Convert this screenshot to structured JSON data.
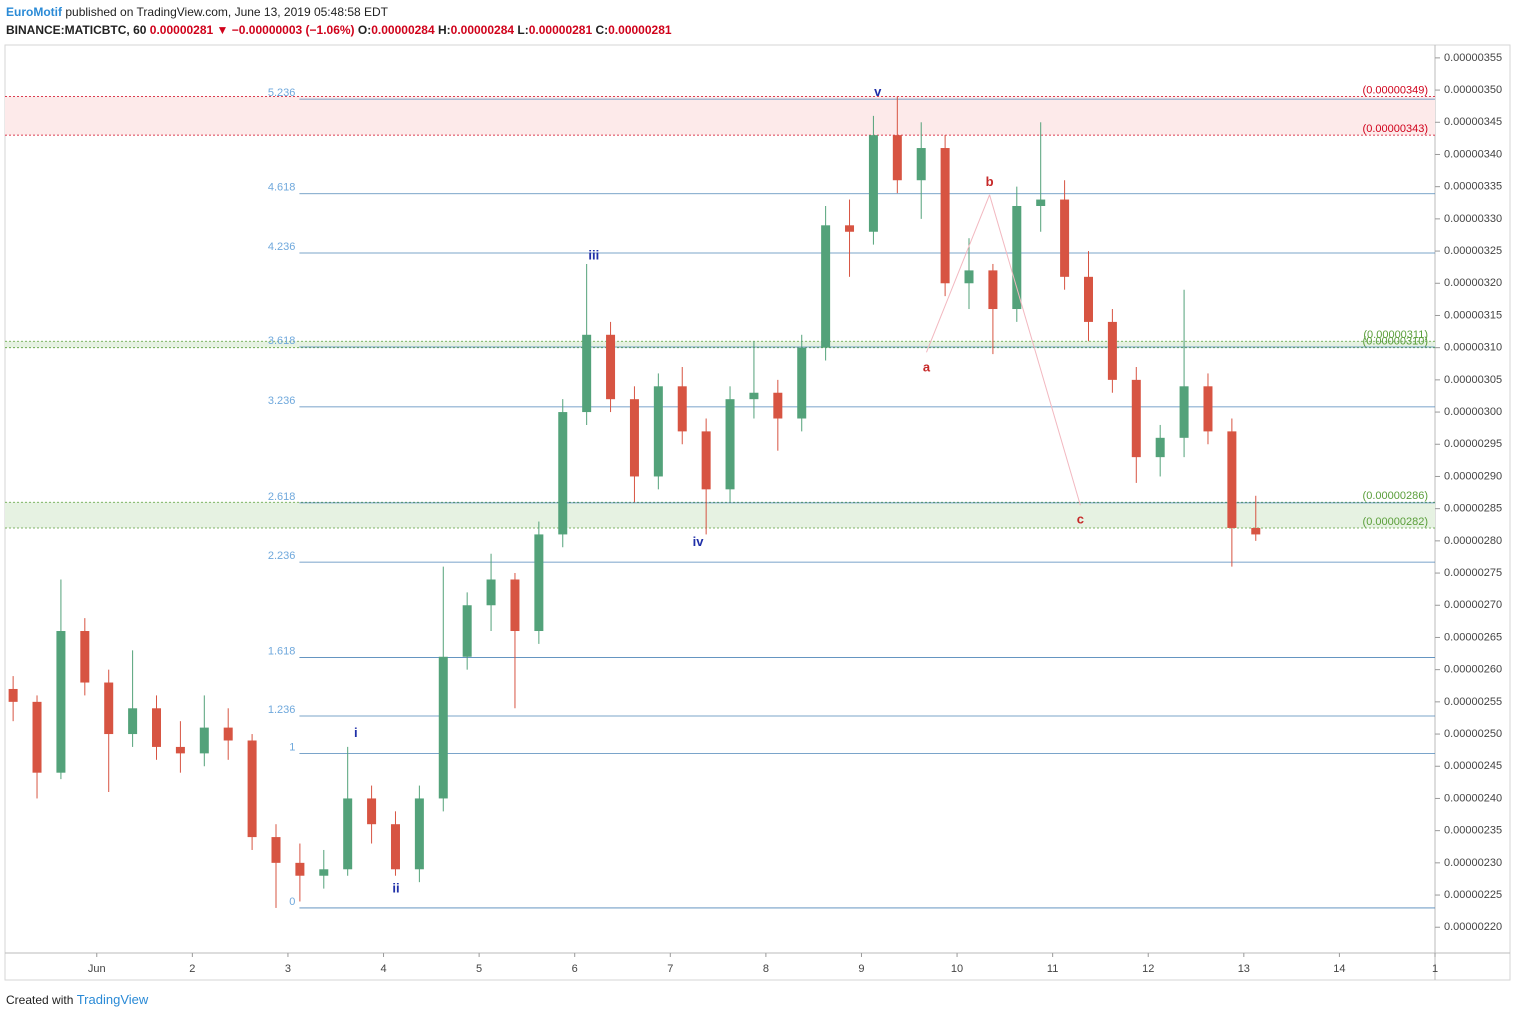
{
  "header": {
    "author": "EuroMotif",
    "published": "published on TradingView.com, June 13, 2019 05:48:58 EDT",
    "symbol": "BINANCE:MATICBTC, 60",
    "last": "0.00000281",
    "change": "−0.00000003 (−1.06%)",
    "o_label": "O:",
    "o": "0.00000284",
    "h_label": "H:",
    "h": "0.00000284",
    "l_label": "L:",
    "l": "0.00000281",
    "c_label": "C:",
    "c": "0.00000281",
    "created_with": "Created with",
    "brand": "TradingView"
  },
  "chart_data": {
    "type": "candlestick",
    "up_color": "#53a27a",
    "down_color": "#d75442",
    "x": [
      0.125,
      0.375,
      0.625,
      0.875,
      1.125,
      1.375,
      1.625,
      1.875,
      2.125,
      2.375,
      2.625,
      2.875,
      3.125,
      3.375,
      3.625,
      3.875,
      4.125,
      4.375,
      4.625,
      4.875,
      5.125,
      5.375,
      5.625,
      5.875,
      6.125,
      6.375,
      6.625,
      6.875,
      7.125,
      7.375,
      7.625,
      7.875,
      8.125,
      8.375,
      8.625,
      8.875,
      9.125,
      9.375,
      9.625,
      9.875,
      10.125,
      10.375,
      10.625,
      10.875,
      11.125,
      11.375,
      11.625,
      11.875,
      12.125,
      12.375,
      12.625,
      12.875,
      13.125
    ],
    "open": [
      2.57e-06,
      2.55e-06,
      2.44e-06,
      2.66e-06,
      2.58e-06,
      2.5e-06,
      2.54e-06,
      2.48e-06,
      2.47e-06,
      2.51e-06,
      2.49e-06,
      2.34e-06,
      2.3e-06,
      2.28e-06,
      2.29e-06,
      2.4e-06,
      2.36e-06,
      2.29e-06,
      2.4e-06,
      2.62e-06,
      2.7e-06,
      2.74e-06,
      2.66e-06,
      2.81e-06,
      3e-06,
      3.12e-06,
      3.02e-06,
      2.9e-06,
      3.04e-06,
      2.97e-06,
      2.88e-06,
      3.02e-06,
      3.03e-06,
      2.99e-06,
      3.1e-06,
      3.29e-06,
      3.28e-06,
      3.43e-06,
      3.36e-06,
      3.41e-06,
      3.2e-06,
      3.22e-06,
      3.16e-06,
      3.32e-06,
      3.33e-06,
      3.21e-06,
      3.14e-06,
      3.05e-06,
      2.93e-06,
      2.96e-06,
      3.04e-06,
      2.97e-06,
      2.82e-06
    ],
    "high": [
      2.59e-06,
      2.56e-06,
      2.74e-06,
      2.68e-06,
      2.6e-06,
      2.63e-06,
      2.56e-06,
      2.52e-06,
      2.56e-06,
      2.54e-06,
      2.5e-06,
      2.36e-06,
      2.33e-06,
      2.32e-06,
      2.48e-06,
      2.42e-06,
      2.38e-06,
      2.42e-06,
      2.76e-06,
      2.72e-06,
      2.78e-06,
      2.75e-06,
      2.83e-06,
      3.02e-06,
      3.23e-06,
      3.14e-06,
      3.04e-06,
      3.06e-06,
      3.07e-06,
      2.99e-06,
      3.04e-06,
      3.11e-06,
      3.05e-06,
      3.12e-06,
      3.32e-06,
      3.33e-06,
      3.46e-06,
      3.49e-06,
      3.45e-06,
      3.43e-06,
      3.27e-06,
      3.23e-06,
      3.35e-06,
      3.45e-06,
      3.36e-06,
      3.25e-06,
      3.16e-06,
      3.07e-06,
      2.98e-06,
      3.19e-06,
      3.06e-06,
      2.99e-06,
      2.87e-06
    ],
    "low": [
      2.52e-06,
      2.4e-06,
      2.43e-06,
      2.56e-06,
      2.41e-06,
      2.48e-06,
      2.46e-06,
      2.44e-06,
      2.45e-06,
      2.46e-06,
      2.32e-06,
      2.23e-06,
      2.24e-06,
      2.26e-06,
      2.28e-06,
      2.33e-06,
      2.28e-06,
      2.27e-06,
      2.38e-06,
      2.6e-06,
      2.66e-06,
      2.54e-06,
      2.64e-06,
      2.79e-06,
      2.98e-06,
      3e-06,
      2.86e-06,
      2.88e-06,
      2.95e-06,
      2.81e-06,
      2.86e-06,
      2.99e-06,
      2.94e-06,
      2.97e-06,
      3.08e-06,
      3.21e-06,
      3.26e-06,
      3.34e-06,
      3.3e-06,
      3.18e-06,
      3.16e-06,
      3.09e-06,
      3.14e-06,
      3.28e-06,
      3.19e-06,
      3.11e-06,
      3.03e-06,
      2.89e-06,
      2.9e-06,
      2.93e-06,
      2.95e-06,
      2.76e-06,
      2.8e-06
    ],
    "close": [
      2.55e-06,
      2.44e-06,
      2.66e-06,
      2.58e-06,
      2.5e-06,
      2.54e-06,
      2.48e-06,
      2.47e-06,
      2.51e-06,
      2.49e-06,
      2.34e-06,
      2.3e-06,
      2.28e-06,
      2.29e-06,
      2.4e-06,
      2.36e-06,
      2.29e-06,
      2.4e-06,
      2.62e-06,
      2.7e-06,
      2.74e-06,
      2.66e-06,
      2.81e-06,
      3e-06,
      3.12e-06,
      3.02e-06,
      2.9e-06,
      3.04e-06,
      2.97e-06,
      2.88e-06,
      3.02e-06,
      3.03e-06,
      2.99e-06,
      3.1e-06,
      3.29e-06,
      3.28e-06,
      3.43e-06,
      3.36e-06,
      3.41e-06,
      3.2e-06,
      3.22e-06,
      3.16e-06,
      3.32e-06,
      3.33e-06,
      3.21e-06,
      3.14e-06,
      3.05e-06,
      2.93e-06,
      2.96e-06,
      3.04e-06,
      2.97e-06,
      2.82e-06,
      2.81e-06
    ],
    "xlim": [
      0.04,
      15
    ],
    "xticks": [
      {
        "value": 1,
        "label": "Jun"
      },
      2,
      3,
      4,
      5,
      6,
      7,
      8,
      9,
      10,
      11,
      12,
      13,
      14,
      {
        "value": 15,
        "label": "1"
      }
    ],
    "ylim": [
      2.16e-06,
      3.57e-06
    ],
    "yticks": [
      {
        "value": 3.55e-06,
        "label": "0.00000355"
      },
      {
        "value": 3.5e-06,
        "label": "0.00000350"
      },
      {
        "value": 3.45e-06,
        "label": "0.00000345"
      },
      {
        "value": 3.4e-06,
        "label": "0.00000340"
      },
      {
        "value": 3.35e-06,
        "label": "0.00000335"
      },
      {
        "value": 3.3e-06,
        "label": "0.00000330"
      },
      {
        "value": 3.25e-06,
        "label": "0.00000325"
      },
      {
        "value": 3.2e-06,
        "label": "0.00000320"
      },
      {
        "value": 3.15e-06,
        "label": "0.00000315"
      },
      {
        "value": 3.1e-06,
        "label": "0.00000310"
      },
      {
        "value": 3.05e-06,
        "label": "0.00000305"
      },
      {
        "value": 3e-06,
        "label": "0.00000300"
      },
      {
        "value": 2.95e-06,
        "label": "0.00000295"
      },
      {
        "value": 2.9e-06,
        "label": "0.00000290"
      },
      {
        "value": 2.85e-06,
        "label": "0.00000285"
      },
      {
        "value": 2.8e-06,
        "label": "0.00000280"
      },
      {
        "value": 2.75e-06,
        "label": "0.00000275"
      },
      {
        "value": 2.7e-06,
        "label": "0.00000270"
      },
      {
        "value": 2.65e-06,
        "label": "0.00000265"
      },
      {
        "value": 2.6e-06,
        "label": "0.00000260"
      },
      {
        "value": 2.55e-06,
        "label": "0.00000255"
      },
      {
        "value": 2.5e-06,
        "label": "0.00000250"
      },
      {
        "value": 2.45e-06,
        "label": "0.00000245"
      },
      {
        "value": 2.4e-06,
        "label": "0.00000240"
      },
      {
        "value": 2.35e-06,
        "label": "0.00000235"
      },
      {
        "value": 2.3e-06,
        "label": "0.00000230"
      },
      {
        "value": 2.25e-06,
        "label": "0.00000225"
      },
      {
        "value": 2.2e-06,
        "label": "0.00000220"
      }
    ],
    "fib": {
      "start": 3.12,
      "color": "#4f86b8",
      "label_color": "#6fa8dc",
      "ratios": [
        5.236,
        4.618,
        4.236,
        3.618,
        3.236,
        2.618,
        2.236,
        1.618,
        1.236,
        1,
        0
      ],
      "prices": [
        3.486e-06,
        3.339e-06,
        3.247e-06,
        3.101e-06,
        3.008e-06,
        2.859e-06,
        2.767e-06,
        2.619e-06,
        2.528e-06,
        2.47e-06,
        2.23e-06
      ]
    },
    "zones": [
      {
        "color": "#d0021b",
        "fill": "#fdeaea",
        "top": {
          "value": 3.49e-06,
          "label": "(0.00000349)"
        },
        "bottom": {
          "value": 3.43e-06,
          "label": "(0.00000343)"
        }
      },
      {
        "color": "#5a9e3a",
        "fill": "#e6f2e2",
        "top": {
          "value": 3.11e-06,
          "label": "(0.00000311)"
        },
        "bottom": {
          "value": 3.1e-06,
          "label": "(0.00000310)"
        }
      },
      {
        "color": "#5a9e3a",
        "fill": "#e6f2e2",
        "top": {
          "value": 2.86e-06,
          "label": "(0.00000286)"
        },
        "bottom": {
          "value": 2.82e-06,
          "label": "(0.00000282)"
        }
      }
    ],
    "waves": [
      {
        "text": "i",
        "x": 3.71,
        "y": 2.501e-06,
        "color": "#1f2fa8"
      },
      {
        "text": "ii",
        "x": 4.13,
        "y": 2.259e-06,
        "color": "#1f2fa8"
      },
      {
        "text": "iii",
        "x": 6.2,
        "y": 3.242e-06,
        "color": "#1f2fa8"
      },
      {
        "text": "iv",
        "x": 7.29,
        "y": 2.797e-06,
        "color": "#1f2fa8"
      },
      {
        "text": "v",
        "x": 9.17,
        "y": 3.496e-06,
        "color": "#1f2fa8"
      },
      {
        "text": "a",
        "x": 9.68,
        "y": 3.068e-06,
        "color": "#c62828"
      },
      {
        "text": "b",
        "x": 10.34,
        "y": 3.356e-06,
        "color": "#c62828"
      },
      {
        "text": "c",
        "x": 11.29,
        "y": 2.832e-06,
        "color": "#c62828"
      }
    ],
    "abc_line_color": "#f2b8c0"
  }
}
